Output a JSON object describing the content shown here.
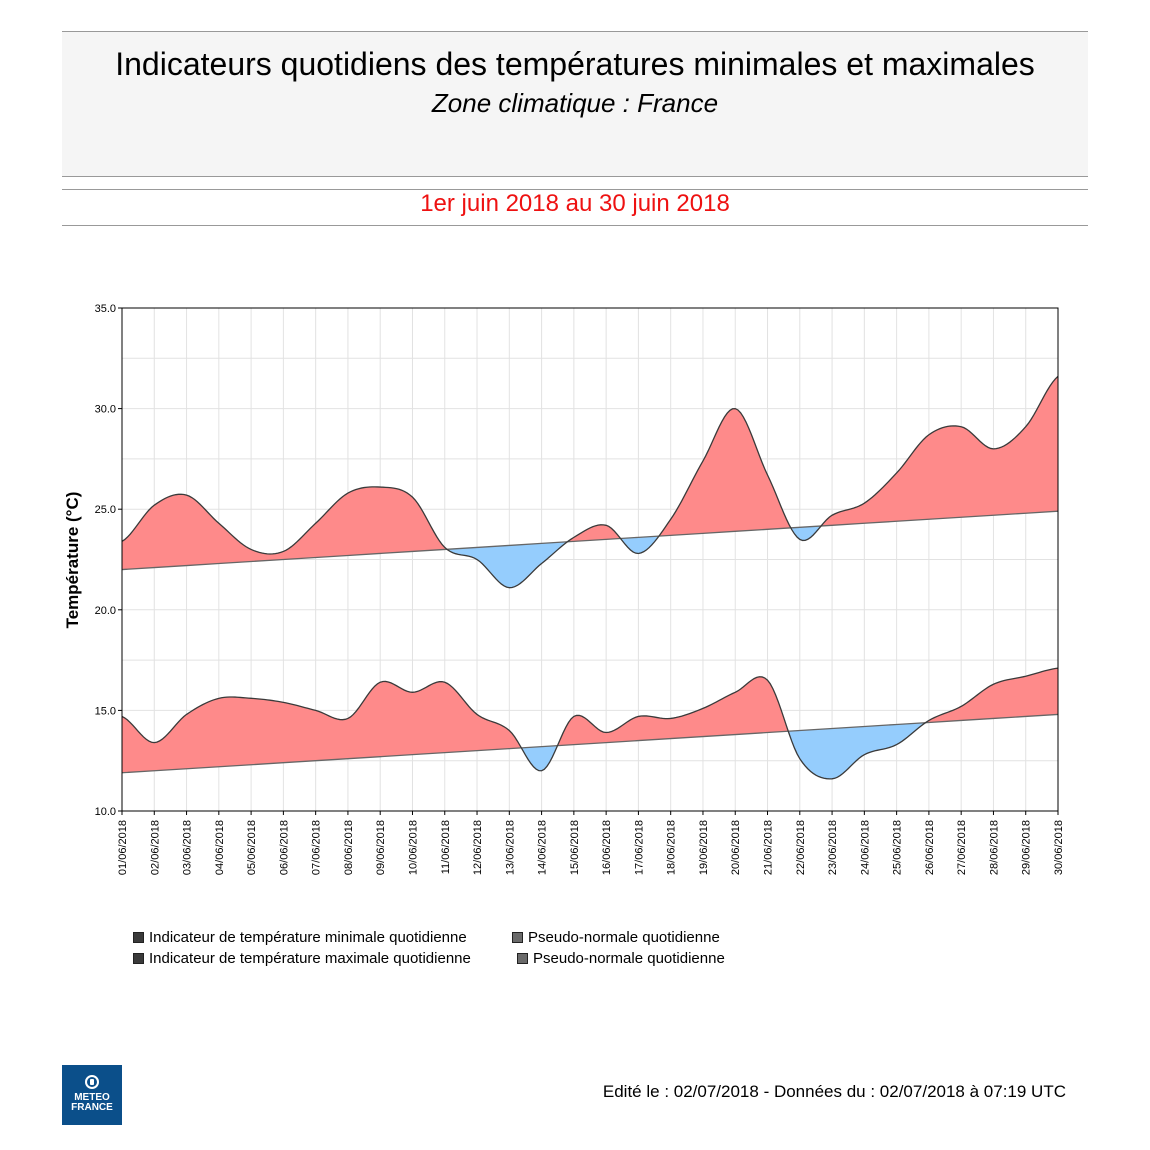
{
  "header": {
    "title": "Indicateurs quotidiens des températures minimales et maximales",
    "subtitle": "Zone climatique : France",
    "period": "1er juin 2018 au 30 juin 2018"
  },
  "colors": {
    "above": "#fe8a8a",
    "below": "#95cdfd",
    "period_text": "#ee1111",
    "logo_bg": "#0b4f8a"
  },
  "chart_data": {
    "type": "area",
    "ylabel": "Température (°C)",
    "ylim": [
      10,
      35
    ],
    "yticks": [
      "10.0",
      "15.0",
      "20.0",
      "25.0",
      "30.0",
      "35.0"
    ],
    "grid": true,
    "legend_position": "bottom",
    "x": [
      "01/06/2018",
      "02/06/2018",
      "03/06/2018",
      "04/06/2018",
      "05/06/2018",
      "06/06/2018",
      "07/06/2018",
      "08/06/2018",
      "09/06/2018",
      "10/06/2018",
      "11/06/2018",
      "12/06/2018",
      "13/06/2018",
      "14/06/2018",
      "15/06/2018",
      "16/06/2018",
      "17/06/2018",
      "18/06/2018",
      "19/06/2018",
      "20/06/2018",
      "21/06/2018",
      "22/06/2018",
      "23/06/2018",
      "24/06/2018",
      "25/06/2018",
      "26/06/2018",
      "27/06/2018",
      "28/06/2018",
      "29/06/2018",
      "30/06/2018"
    ],
    "series": [
      {
        "name": "Indicateur de température minimale quotidienne",
        "values": [
          14.7,
          13.4,
          14.8,
          15.6,
          15.6,
          15.4,
          15.0,
          14.6,
          16.4,
          15.9,
          16.4,
          14.8,
          14.0,
          12.0,
          14.7,
          13.9,
          14.7,
          14.6,
          15.1,
          15.9,
          16.5,
          12.6,
          11.6,
          12.8,
          13.3,
          14.5,
          15.2,
          16.3,
          16.7,
          17.1
        ]
      },
      {
        "name": "Pseudo-normale quotidienne",
        "values": [
          11.9,
          12.0,
          12.1,
          12.2,
          12.3,
          12.4,
          12.5,
          12.6,
          12.7,
          12.8,
          12.9,
          13.0,
          13.1,
          13.2,
          13.3,
          13.4,
          13.5,
          13.6,
          13.7,
          13.8,
          13.9,
          14.0,
          14.1,
          14.2,
          14.3,
          14.4,
          14.5,
          14.6,
          14.7,
          14.8
        ]
      },
      {
        "name": "Indicateur de température maximale quotidienne",
        "values": [
          23.4,
          25.2,
          25.7,
          24.3,
          23.0,
          22.9,
          24.3,
          25.8,
          26.1,
          25.6,
          23.1,
          22.5,
          21.1,
          22.3,
          23.6,
          24.2,
          22.8,
          24.5,
          27.4,
          30.0,
          26.7,
          23.5,
          24.7,
          25.3,
          26.8,
          28.7,
          29.1,
          28.0,
          29.1,
          31.6
        ]
      },
      {
        "name": "Pseudo-normale quotidienne",
        "values": [
          22.0,
          22.1,
          22.2,
          22.3,
          22.4,
          22.5,
          22.6,
          22.7,
          22.8,
          22.9,
          23.0,
          23.1,
          23.2,
          23.3,
          23.4,
          23.5,
          23.6,
          23.7,
          23.8,
          23.9,
          24.0,
          24.1,
          24.2,
          24.3,
          24.4,
          24.5,
          24.6,
          24.7,
          24.8,
          24.9
        ]
      }
    ]
  },
  "legend": {
    "tmin": "Indicateur de température minimale quotidienne",
    "normal1": "Pseudo-normale quotidienne",
    "tmax": "Indicateur de température maximale quotidienne",
    "normal2": "Pseudo-normale quotidienne"
  },
  "logo": {
    "line1": "METEO",
    "line2": "FRANCE"
  },
  "footer": {
    "edit_text": "Edité le : 02/07/2018 - Données du : 02/07/2018 à 07:19 UTC"
  }
}
